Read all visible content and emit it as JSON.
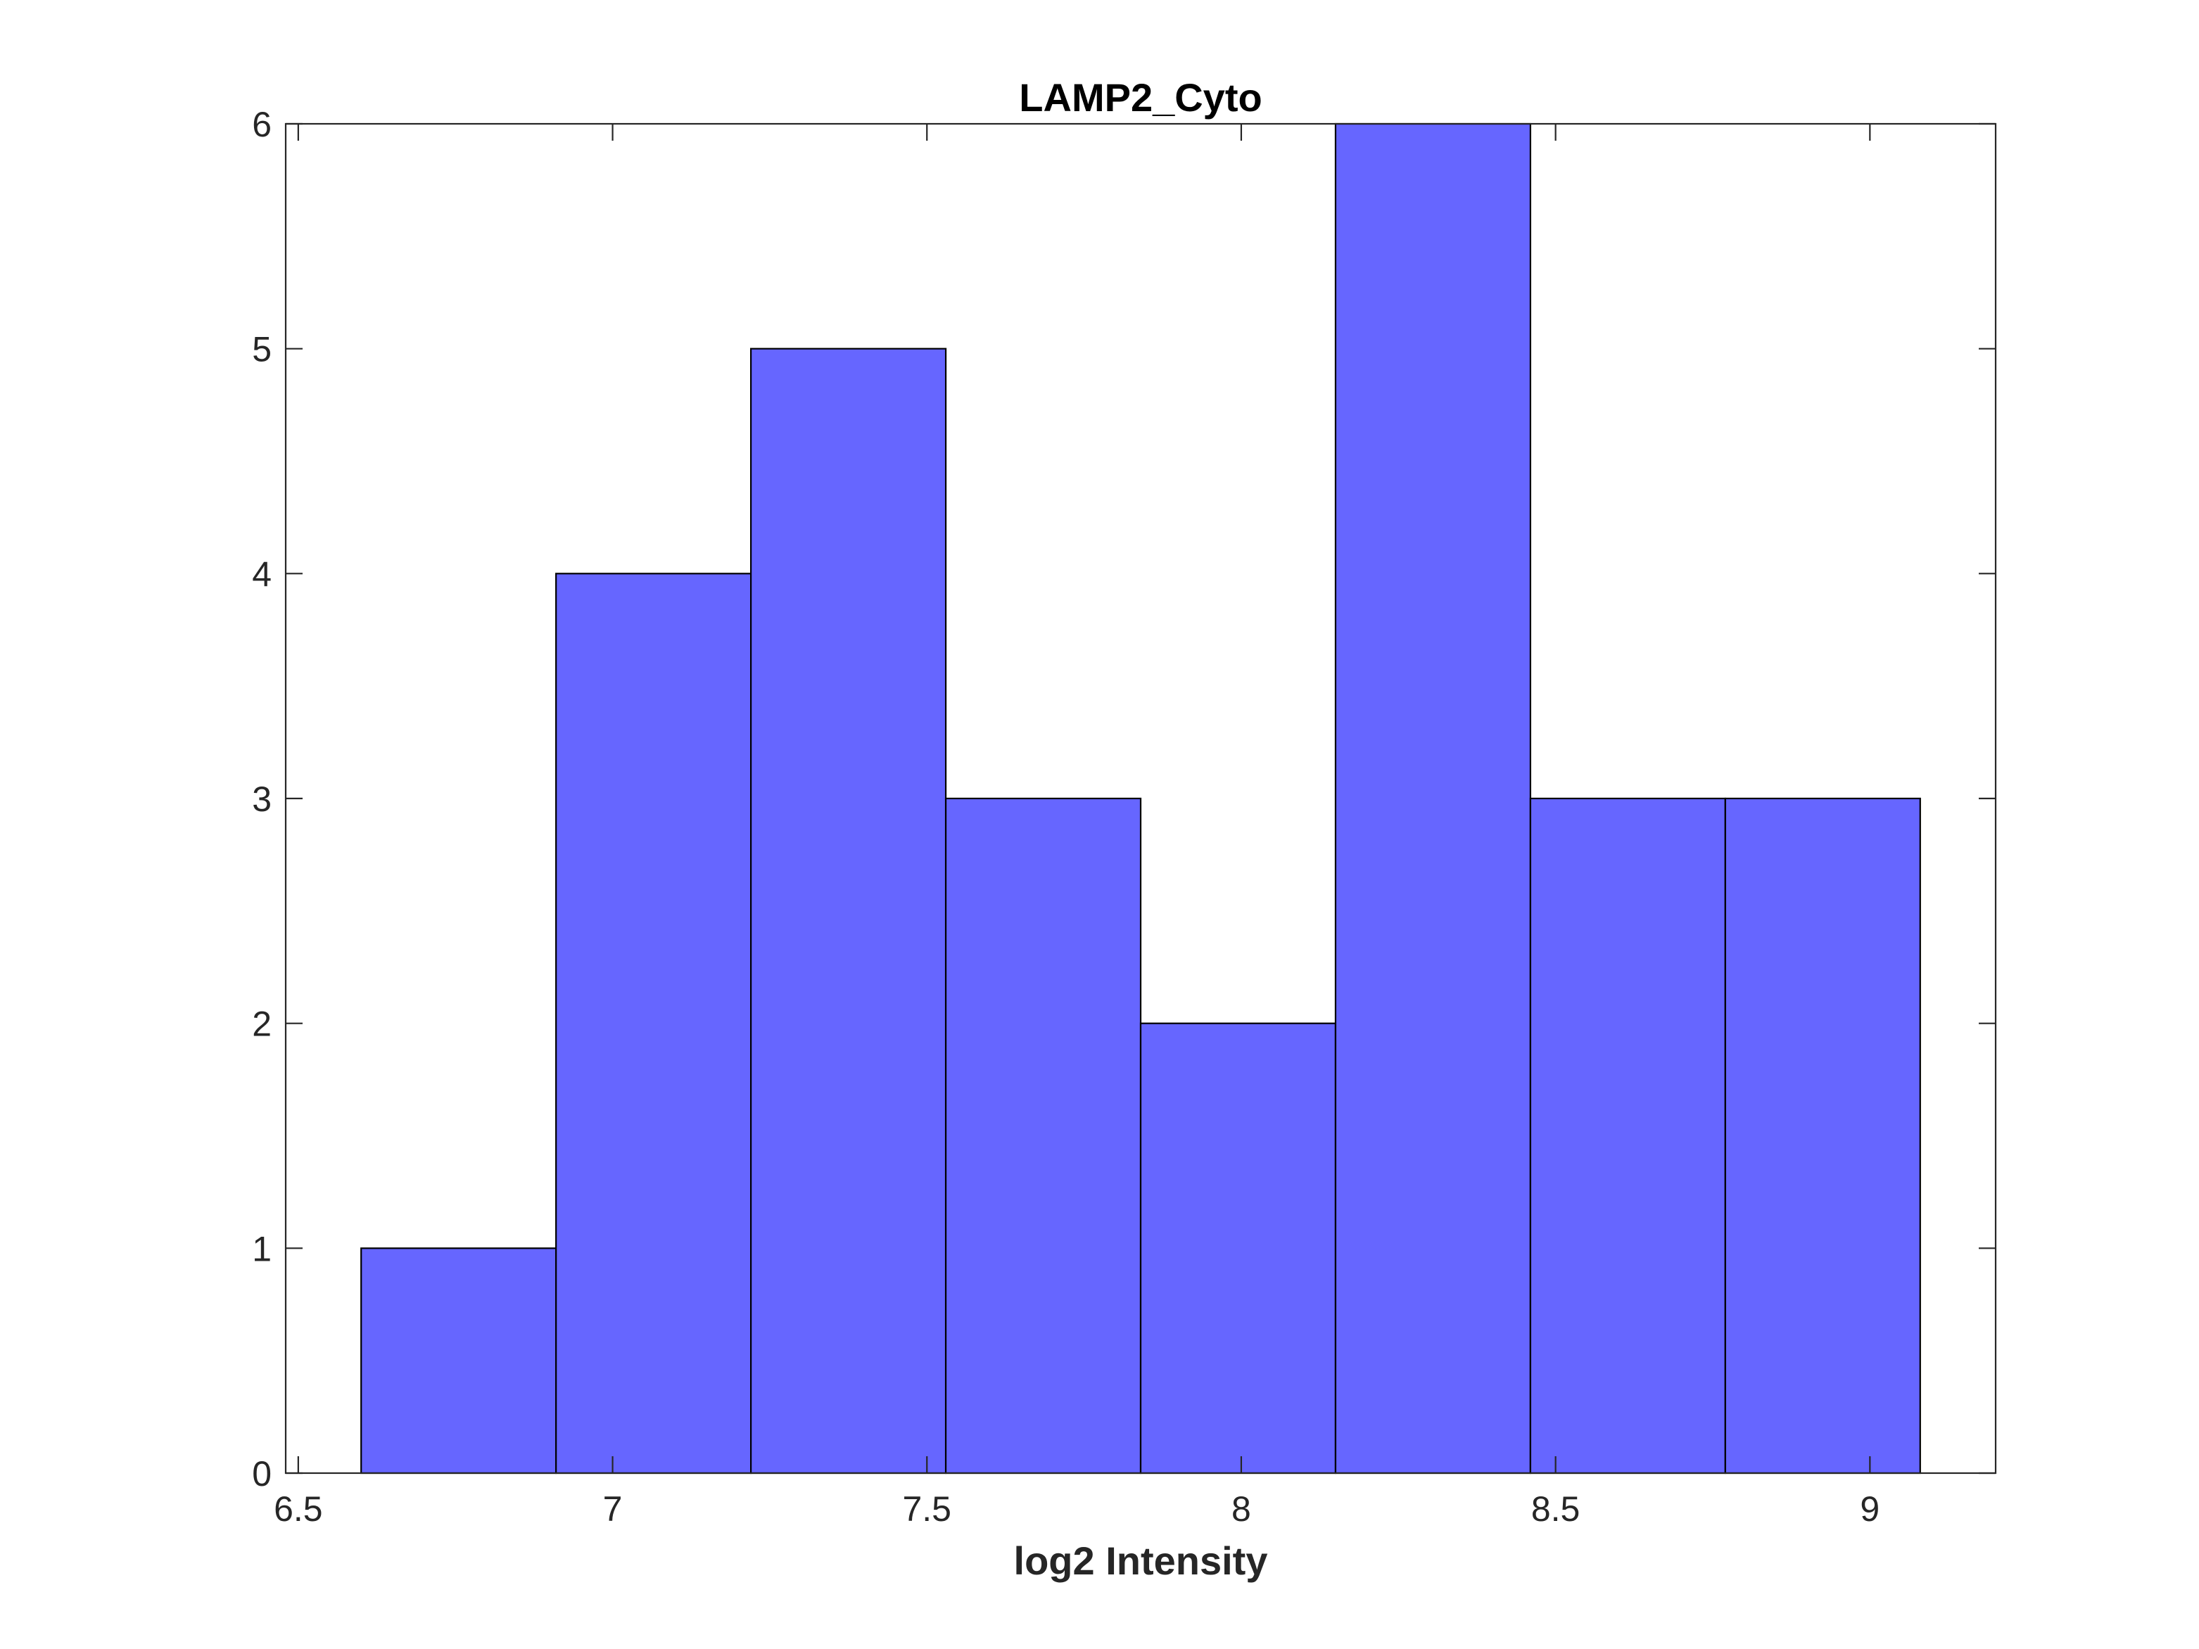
{
  "chart_data": {
    "type": "bar",
    "title": "LAMP2_Cyto",
    "xlabel": "log2 Intensity",
    "ylabel": "",
    "bin_edges": [
      6.6,
      6.91,
      7.22,
      7.53,
      7.84,
      8.15,
      8.46,
      8.77,
      9.08
    ],
    "values": [
      1,
      4,
      5,
      3,
      2,
      6,
      3,
      3
    ],
    "xlim": [
      6.48,
      9.2
    ],
    "ylim": [
      0,
      6
    ],
    "xticks": [
      6.5,
      7,
      7.5,
      8,
      8.5,
      9
    ],
    "xtick_labels": [
      "6.5",
      "7",
      "7.5",
      "8",
      "8.5",
      "9"
    ],
    "yticks": [
      0,
      1,
      2,
      3,
      4,
      5,
      6
    ],
    "ytick_labels": [
      "0",
      "1",
      "2",
      "3",
      "4",
      "5",
      "6"
    ],
    "grid": false,
    "legend": "none",
    "bar_color": "#6666ff",
    "edge_color": "#000000",
    "axis_color": "#262626"
  }
}
